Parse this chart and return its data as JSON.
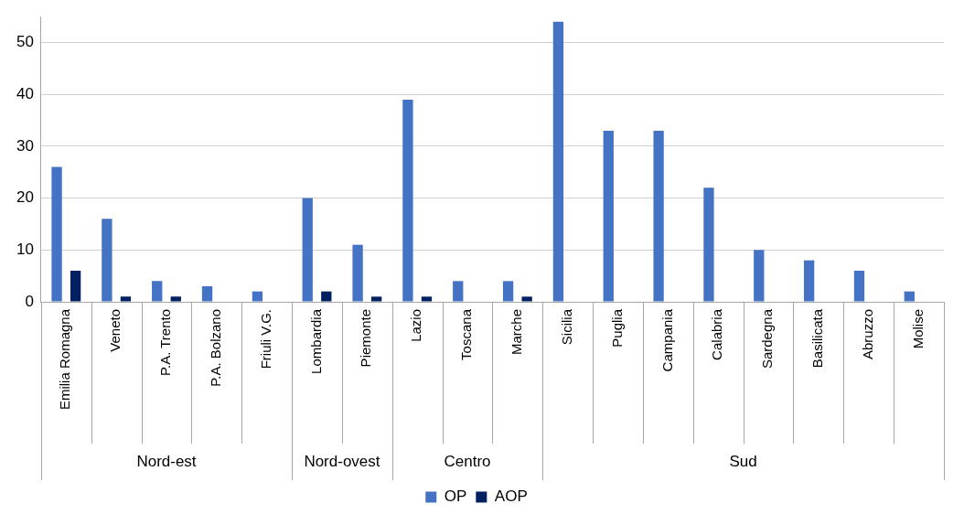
{
  "chart_data": {
    "type": "bar",
    "categories": [
      "Emilia Romagna",
      "Veneto",
      "P.A. Trento",
      "P.A. Bolzano",
      "Friuli V.G.",
      "Lombardia",
      "Piemonte",
      "Lazio",
      "Toscana",
      "Marche",
      "Sicilia",
      "Puglia",
      "Campania",
      "Calabria",
      "Sardegna",
      "Basilicata",
      "Abruzzo",
      "Molise"
    ],
    "series": [
      {
        "name": "OP",
        "color": "#4472c4",
        "values": [
          26,
          16,
          4,
          3,
          2,
          20,
          11,
          39,
          4,
          4,
          54,
          33,
          33,
          22,
          10,
          8,
          6,
          2
        ]
      },
      {
        "name": "AOP",
        "color": "#002060",
        "values": [
          6,
          1,
          1,
          0,
          0,
          2,
          1,
          1,
          0,
          1,
          0,
          0,
          0,
          0,
          0,
          0,
          0,
          0
        ]
      }
    ],
    "ylim": [
      0,
      55
    ],
    "yticks": [
      0,
      10,
      20,
      30,
      40,
      50
    ],
    "grid": "y",
    "legend": "bottom",
    "annotations": [
      "Nord-est",
      "Nord-ovest",
      "Centro",
      "Sud"
    ]
  }
}
